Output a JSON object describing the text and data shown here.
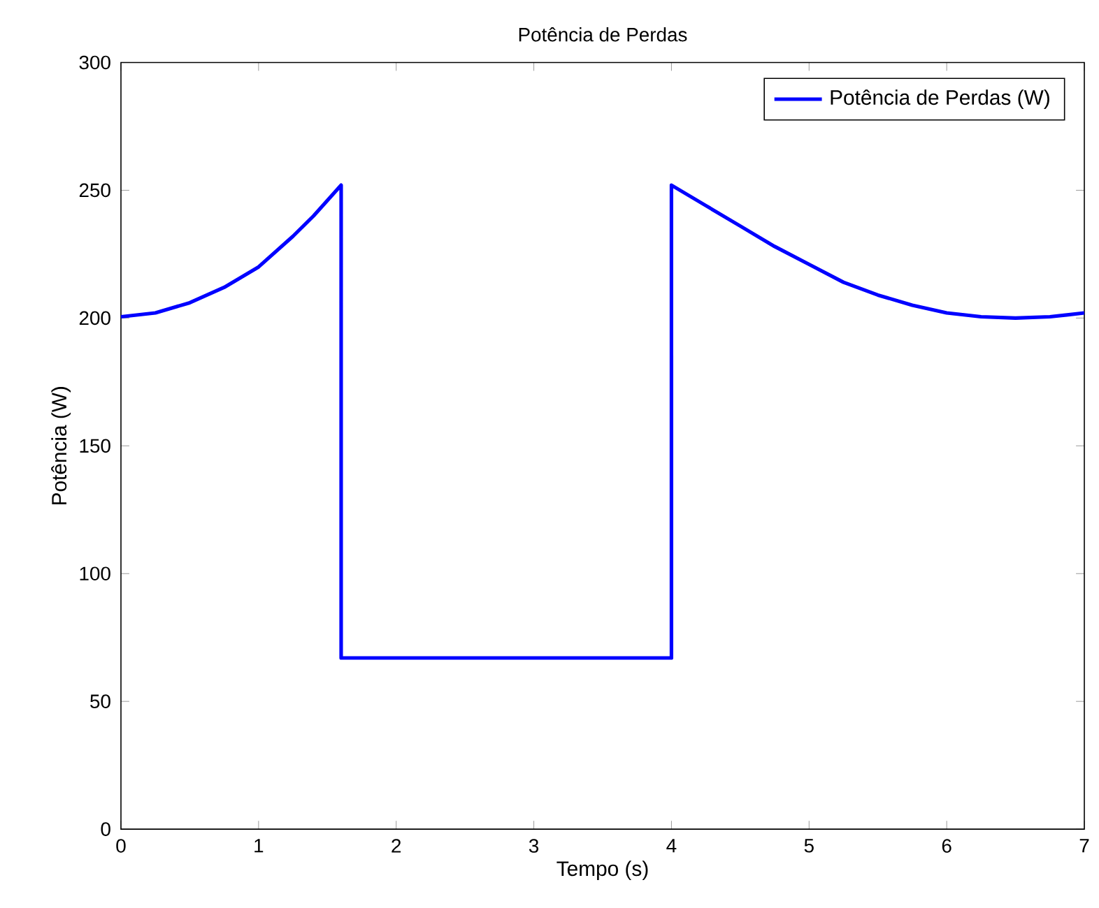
{
  "chart_data": {
    "type": "line",
    "title": "Potência de Perdas",
    "xlabel": "Tempo (s)",
    "ylabel": "Potência (W)",
    "x": [
      0,
      0.25,
      0.5,
      0.75,
      1.0,
      1.25,
      1.4,
      1.5,
      1.6,
      1.6,
      4.0,
      4.0,
      4.25,
      4.5,
      4.75,
      5.0,
      5.25,
      5.5,
      5.75,
      6.0,
      6.25,
      6.5,
      6.75,
      7.0
    ],
    "series": [
      {
        "name": "Potência de Perdas (W)",
        "color": "#0000ff",
        "values": [
          200.5,
          202,
          206,
          212,
          220,
          232,
          240,
          246,
          252,
          67,
          67,
          252,
          244,
          236,
          228,
          221,
          214,
          209,
          205,
          202,
          200.5,
          200,
          200.5,
          202
        ]
      }
    ],
    "xlim": [
      0,
      7
    ],
    "xticks": [
      0,
      1,
      2,
      3,
      4,
      5,
      6,
      7
    ],
    "ylim": [
      0,
      300
    ],
    "yticks": [
      0,
      50,
      100,
      150,
      200,
      250,
      300
    ],
    "grid": false,
    "legend": "top right",
    "marker": "none",
    "line_style": "solid"
  }
}
